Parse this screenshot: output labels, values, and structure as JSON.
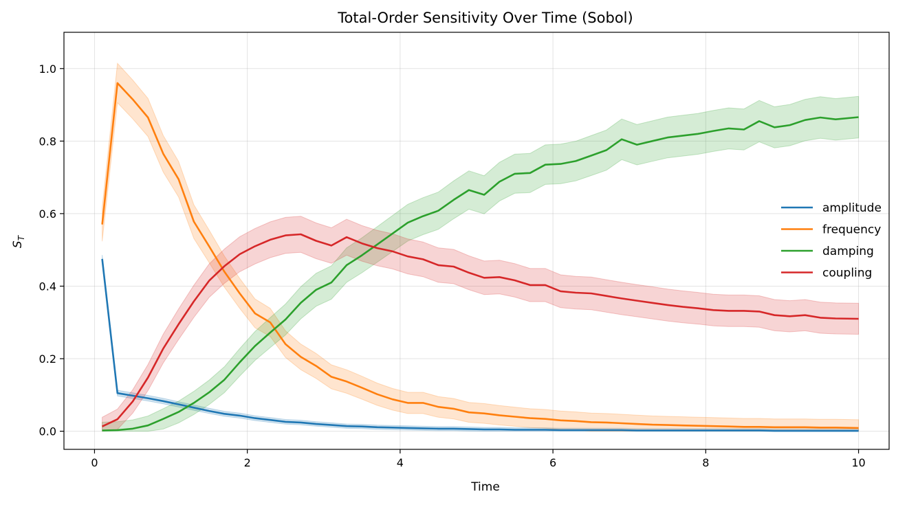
{
  "chart_data": {
    "type": "line",
    "title": "Total-Order Sensitivity Over Time (Sobol)",
    "xlabel": "Time",
    "ylabel": "S",
    "ylabel_sub": "T",
    "xlim": [
      -0.4,
      10.4
    ],
    "ylim": [
      -0.05,
      1.1
    ],
    "xticks": [
      0,
      2,
      4,
      6,
      8,
      10
    ],
    "yticks": [
      0.0,
      0.2,
      0.4,
      0.6,
      0.8,
      1.0
    ],
    "xtick_labels": [
      "0",
      "2",
      "4",
      "6",
      "8",
      "10"
    ],
    "ytick_labels": [
      "0.0",
      "0.2",
      "0.4",
      "0.6",
      "0.8",
      "1.0"
    ],
    "grid": true,
    "legend_position": "center-right",
    "x": [
      0.1,
      0.3,
      0.5,
      0.7,
      0.9,
      1.1,
      1.3,
      1.5,
      1.7,
      1.9,
      2.1,
      2.3,
      2.5,
      2.7,
      2.9,
      3.1,
      3.3,
      3.5,
      3.7,
      3.9,
      4.1,
      4.3,
      4.5,
      4.7,
      4.9,
      5.1,
      5.3,
      5.5,
      5.7,
      5.9,
      6.1,
      6.3,
      6.5,
      6.7,
      6.9,
      7.1,
      7.3,
      7.5,
      7.7,
      7.9,
      8.1,
      8.3,
      8.5,
      8.7,
      8.9,
      9.1,
      9.3,
      9.5,
      9.7,
      10.0
    ],
    "series": [
      {
        "name": "amplitude",
        "color": "#1f77b4",
        "values": [
          0.475,
          0.105,
          0.098,
          0.091,
          0.083,
          0.074,
          0.065,
          0.056,
          0.048,
          0.043,
          0.036,
          0.031,
          0.026,
          0.024,
          0.02,
          0.017,
          0.014,
          0.013,
          0.011,
          0.01,
          0.009,
          0.008,
          0.007,
          0.007,
          0.006,
          0.005,
          0.005,
          0.004,
          0.004,
          0.004,
          0.003,
          0.003,
          0.003,
          0.003,
          0.003,
          0.002,
          0.002,
          0.002,
          0.002,
          0.002,
          0.002,
          0.002,
          0.002,
          0.002,
          0.001,
          0.001,
          0.001,
          0.001,
          0.001,
          0.001
        ],
        "band": 0.014
      },
      {
        "name": "frequency",
        "color": "#ff7f0e",
        "values": [
          0.57,
          0.96,
          0.915,
          0.865,
          0.765,
          0.695,
          0.578,
          0.51,
          0.44,
          0.38,
          0.325,
          0.3,
          0.24,
          0.205,
          0.18,
          0.15,
          0.137,
          0.12,
          0.102,
          0.088,
          0.078,
          0.078,
          0.067,
          0.062,
          0.052,
          0.049,
          0.044,
          0.04,
          0.036,
          0.034,
          0.03,
          0.028,
          0.025,
          0.024,
          0.022,
          0.02,
          0.018,
          0.017,
          0.016,
          0.015,
          0.014,
          0.013,
          0.012,
          0.012,
          0.011,
          0.011,
          0.011,
          0.01,
          0.01,
          0.009
        ],
        "band": 0.055
      },
      {
        "name": "damping",
        "color": "#2ca02c",
        "values": [
          0.002,
          0.003,
          0.007,
          0.016,
          0.034,
          0.053,
          0.078,
          0.107,
          0.142,
          0.19,
          0.235,
          0.272,
          0.308,
          0.354,
          0.39,
          0.41,
          0.458,
          0.485,
          0.515,
          0.545,
          0.575,
          0.593,
          0.608,
          0.638,
          0.665,
          0.652,
          0.688,
          0.71,
          0.712,
          0.735,
          0.737,
          0.745,
          0.76,
          0.775,
          0.805,
          0.79,
          0.8,
          0.81,
          0.815,
          0.82,
          0.828,
          0.835,
          0.832,
          0.855,
          0.838,
          0.844,
          0.858,
          0.865,
          0.86,
          0.866
        ],
        "band": 0.06
      },
      {
        "name": "coupling",
        "color": "#d62728",
        "values": [
          0.013,
          0.033,
          0.082,
          0.148,
          0.228,
          0.295,
          0.358,
          0.415,
          0.455,
          0.488,
          0.51,
          0.528,
          0.54,
          0.543,
          0.525,
          0.512,
          0.535,
          0.518,
          0.505,
          0.496,
          0.482,
          0.474,
          0.458,
          0.454,
          0.437,
          0.423,
          0.425,
          0.416,
          0.403,
          0.403,
          0.386,
          0.382,
          0.38,
          0.373,
          0.366,
          0.36,
          0.354,
          0.348,
          0.343,
          0.339,
          0.334,
          0.332,
          0.332,
          0.33,
          0.32,
          0.317,
          0.32,
          0.313,
          0.311,
          0.31
        ],
        "band": 0.06
      }
    ]
  }
}
